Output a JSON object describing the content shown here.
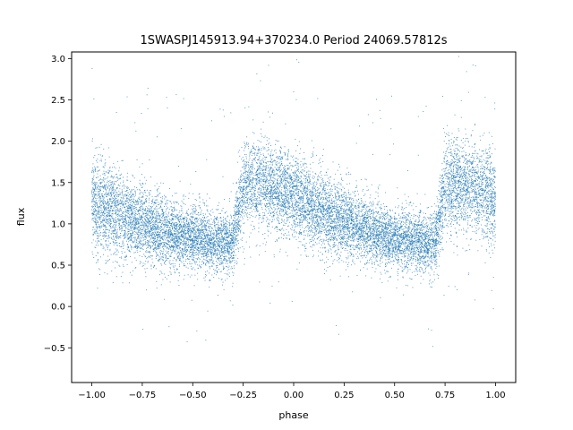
{
  "chart_data": {
    "type": "scatter",
    "title": "1SWASPJ145913.94+370234.0 Period 24069.57812s",
    "xlabel": "phase",
    "ylabel": "flux",
    "xlim": [
      -1.1,
      1.1
    ],
    "ylim": [
      -0.92,
      3.08
    ],
    "xticks": [
      {
        "value": -1.0,
        "label": "−1.00"
      },
      {
        "value": -0.75,
        "label": "−0.75"
      },
      {
        "value": -0.5,
        "label": "−0.50"
      },
      {
        "value": -0.25,
        "label": "−0.25"
      },
      {
        "value": 0.0,
        "label": "0.00"
      },
      {
        "value": 0.25,
        "label": "0.25"
      },
      {
        "value": 0.5,
        "label": "0.50"
      },
      {
        "value": 0.75,
        "label": "0.75"
      },
      {
        "value": 1.0,
        "label": "1.00"
      }
    ],
    "yticks": [
      {
        "value": -0.5,
        "label": "−0.5"
      },
      {
        "value": 0.0,
        "label": "0.0"
      },
      {
        "value": 0.5,
        "label": "0.5"
      },
      {
        "value": 1.0,
        "label": "1.0"
      },
      {
        "value": 1.5,
        "label": "1.5"
      },
      {
        "value": 2.0,
        "label": "2.0"
      },
      {
        "value": 2.5,
        "label": "2.5"
      },
      {
        "value": 3.0,
        "label": "3.0"
      }
    ],
    "grid": false,
    "legend": "none",
    "marker_color": "#1f77b4",
    "series": [
      {
        "x": [
          -1.0,
          -0.9,
          -0.8,
          -0.7,
          -0.6,
          -0.5,
          -0.4,
          -0.3,
          -0.25,
          -0.2,
          -0.1,
          0.0,
          0.1,
          0.2,
          0.3,
          0.4,
          0.5,
          0.6,
          0.7,
          0.75,
          0.8,
          0.9,
          1.0
        ],
        "y": [
          1.25,
          1.15,
          1.05,
          0.95,
          0.88,
          0.82,
          0.78,
          0.76,
          1.45,
          1.5,
          1.42,
          1.32,
          1.2,
          1.08,
          0.98,
          0.88,
          0.82,
          0.78,
          0.76,
          1.45,
          1.5,
          1.42,
          1.32
        ],
        "spread": [
          0.28,
          0.27,
          0.25,
          0.22,
          0.2,
          0.19,
          0.18,
          0.18,
          0.28,
          0.27,
          0.26,
          0.26,
          0.25,
          0.23,
          0.21,
          0.19,
          0.18,
          0.18,
          0.18,
          0.28,
          0.27,
          0.26,
          0.28
        ]
      }
    ]
  }
}
